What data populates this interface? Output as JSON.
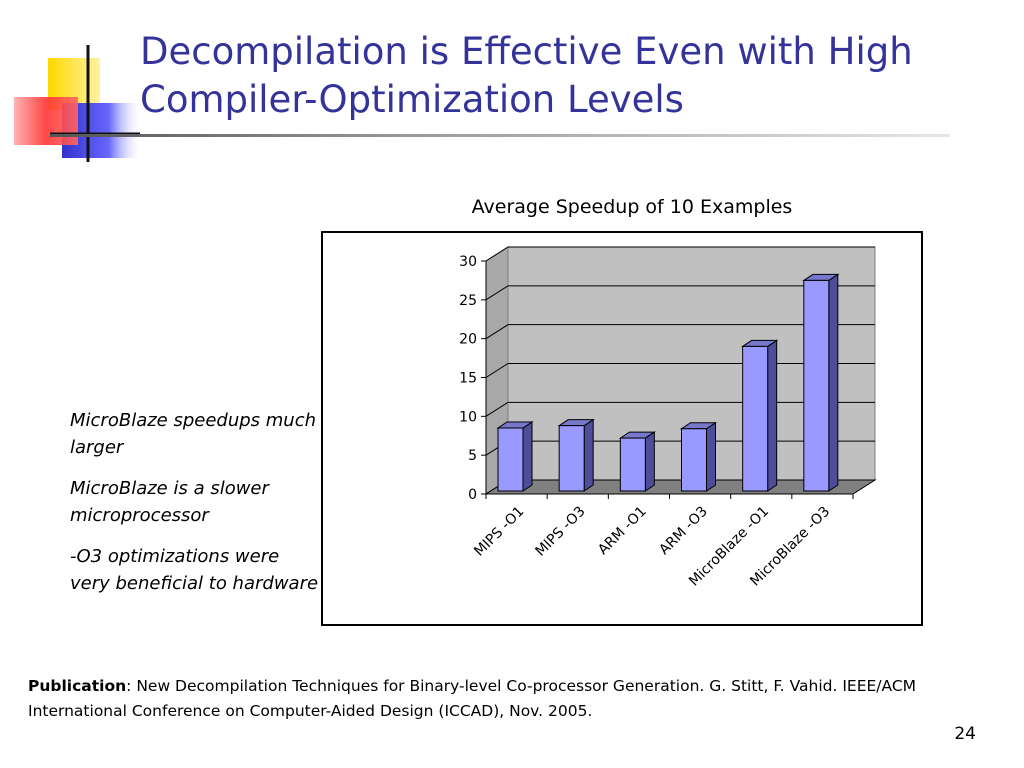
{
  "slide": {
    "title": "Decompilation is Effective Even with High Compiler-Optimization Levels",
    "bullets": [
      "MicroBlaze speedups much larger",
      "MicroBlaze is a slower microprocessor",
      "-O3 optimizations were very beneficial to hardware"
    ],
    "publication_label": "Publication",
    "publication_text": ":  New Decompilation Techniques for Binary-level Co-processor Generation. G. Stitt, F. Vahid. IEEE/ACM International Conference on Computer-Aided Design (ICCAD), Nov. 2005.",
    "page_number": "24"
  },
  "colors": {
    "title": "#333399",
    "bar_front": "#9999ff",
    "bar_side": "#4d4d99",
    "bar_top": "#7777cc",
    "plot_wall": "#c0c0c0",
    "plot_floor": "#808080"
  },
  "chart_data": {
    "type": "bar",
    "title": "Average Speedup of 10 Examples",
    "categories": [
      "MIPS -O1",
      "MIPS -O3",
      "ARM -O1",
      "ARM -O3",
      "MicroBlaze -O1",
      "MicroBlaze -O3"
    ],
    "values": [
      8.5,
      8.8,
      7.2,
      8.4,
      19,
      27.5
    ],
    "ylim": [
      0,
      30
    ],
    "yticks": [
      "0",
      "5",
      "10",
      "15",
      "20",
      "25",
      "30"
    ],
    "grid": true,
    "legend": "none",
    "style": "3d"
  }
}
